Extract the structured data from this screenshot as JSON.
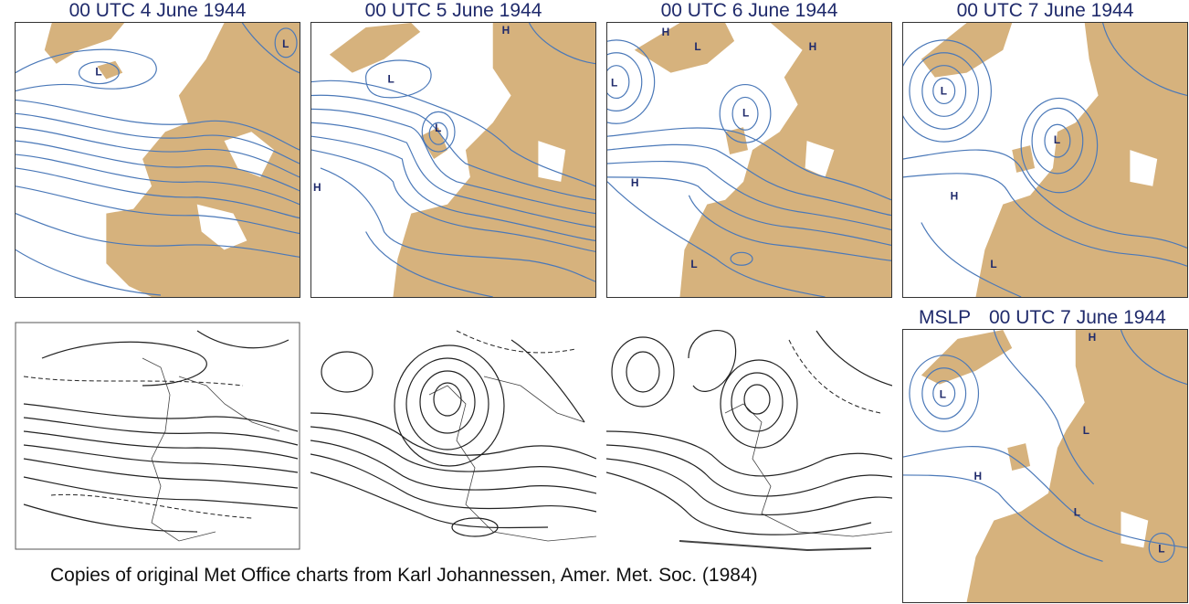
{
  "panels": [
    {
      "title": "00 UTC 4 June 1944",
      "markers": [
        "L",
        "L"
      ]
    },
    {
      "title": "00 UTC 5 June 1944",
      "markers": [
        "H",
        "L",
        "L",
        "H"
      ]
    },
    {
      "title": "00 UTC 6 June 1944",
      "markers": [
        "H",
        "L",
        "H",
        "L",
        "L",
        "H",
        "L"
      ]
    },
    {
      "title": "00 UTC 7 June 1944",
      "markers": [
        "L",
        "L",
        "H",
        "L"
      ]
    }
  ],
  "mslp_panel": {
    "label": "MSLP",
    "title": "00 UTC 7 June 1944",
    "markers": [
      "H",
      "L",
      "L",
      "H",
      "L",
      "L"
    ]
  },
  "original_charts": {
    "count": 3
  },
  "caption": "Copies of original Met Office charts from Karl Johannessen, Amer. Met. Soc. (1984)",
  "colors": {
    "land": "#d6b27d",
    "isobar": "#4a78b8",
    "title": "#1f2a6b"
  }
}
